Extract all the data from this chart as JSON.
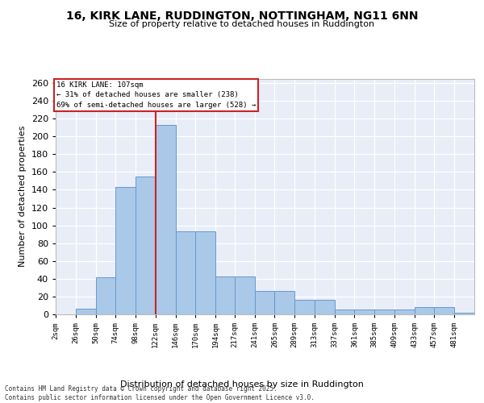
{
  "title": "16, KIRK LANE, RUDDINGTON, NOTTINGHAM, NG11 6NN",
  "subtitle": "Size of property relative to detached houses in Ruddington",
  "xlabel": "Distribution of detached houses by size in Ruddington",
  "ylabel": "Number of detached properties",
  "bar_color": "#aac8e8",
  "bar_edge_color": "#6699cc",
  "vline_color": "#cc2222",
  "annotation_text": "16 KIRK LANE: 107sqm\n← 31% of detached houses are smaller (238)\n69% of semi-detached houses are larger (528) →",
  "ylim": [
    0,
    265
  ],
  "yticks": [
    0,
    20,
    40,
    60,
    80,
    100,
    120,
    140,
    160,
    180,
    200,
    220,
    240,
    260
  ],
  "bg_color": "#e8edf8",
  "footer": "Contains HM Land Registry data © Crown copyright and database right 2025.\nContains public sector information licensed under the Open Government Licence v3.0.",
  "bin_edges": [
    2,
    26,
    50,
    74,
    98,
    122,
    146,
    170,
    194,
    217,
    241,
    265,
    289,
    313,
    337,
    361,
    385,
    409,
    433,
    457,
    481,
    505
  ],
  "bar_heights": [
    0,
    6,
    42,
    143,
    155,
    213,
    93,
    93,
    43,
    43,
    26,
    26,
    16,
    16,
    5,
    5,
    5,
    5,
    8,
    8,
    2
  ],
  "tick_labels": [
    "2sqm",
    "26sqm",
    "50sqm",
    "74sqm",
    "98sqm",
    "122sqm",
    "146sqm",
    "170sqm",
    "194sqm",
    "217sqm",
    "241sqm",
    "265sqm",
    "289sqm",
    "313sqm",
    "337sqm",
    "361sqm",
    "385sqm",
    "409sqm",
    "433sqm",
    "457sqm",
    "481sqm"
  ]
}
